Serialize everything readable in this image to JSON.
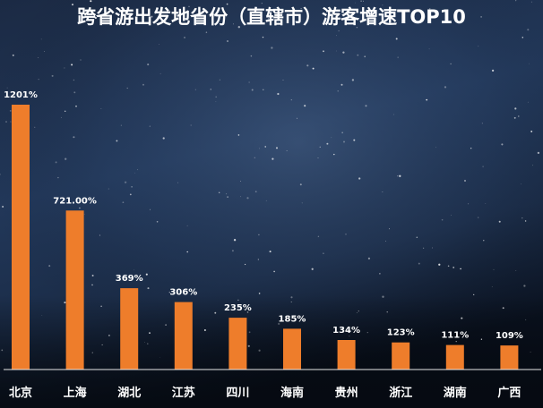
{
  "chart_data": {
    "type": "bar",
    "title": "跨省游出发地省份（直辖市）游客增速TOP10",
    "categories": [
      "北京",
      "上海",
      "湖北",
      "江苏",
      "四川",
      "海南",
      "贵州",
      "浙江",
      "湖南",
      "广西"
    ],
    "values": [
      1201,
      721,
      369,
      306,
      235,
      185,
      134,
      123,
      111,
      109
    ],
    "value_labels": [
      "1201%",
      "721.00%",
      "369%",
      "306%",
      "235%",
      "185%",
      "134%",
      "123%",
      "111%",
      "109%"
    ],
    "xlabel": "",
    "ylabel": "",
    "grid": false,
    "legend": "none"
  },
  "colors": {
    "bar": "#ee7d2b",
    "text": "#ffffff",
    "axis": "#e8e8e8",
    "bg_top": "#18253c",
    "bg_mid": "#223a5c",
    "bg_bottom": "#0a1220"
  }
}
